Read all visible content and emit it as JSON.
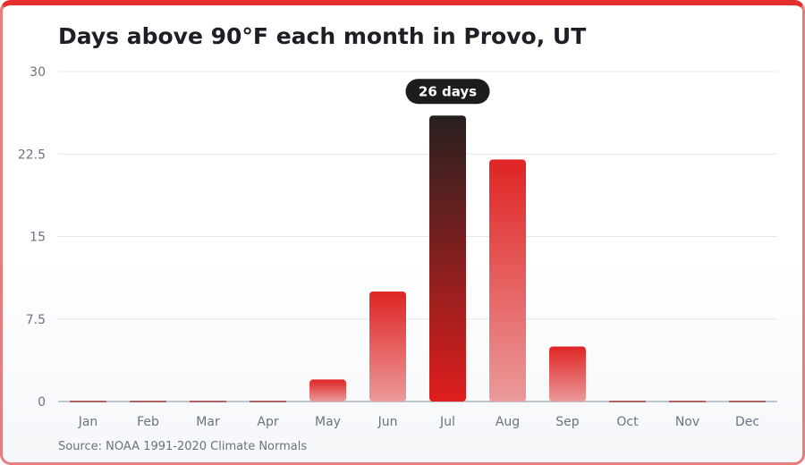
{
  "chart_data": {
    "type": "bar",
    "title": "Days above 90°F each month in Provo, UT",
    "xlabel": "",
    "ylabel": "",
    "categories": [
      "Jan",
      "Feb",
      "Mar",
      "Apr",
      "May",
      "Jun",
      "Jul",
      "Aug",
      "Sep",
      "Oct",
      "Nov",
      "Dec"
    ],
    "values": [
      0,
      0,
      0,
      0,
      2,
      10,
      26,
      22,
      5,
      0,
      0,
      0
    ],
    "ylim": [
      0,
      30
    ],
    "yticks": [
      0,
      7.5,
      15,
      22.5,
      30
    ],
    "ytick_labels": [
      "0",
      "7.5",
      "15",
      "22.5",
      "30"
    ],
    "grid": true,
    "highlight": {
      "category": "Jul",
      "label": "26 days"
    },
    "colors": {
      "bar_top": "#e02424",
      "bar_bottom": "#eb9a9a",
      "highlight_top": "#26201f",
      "highlight_bottom": "#e01e1e",
      "grid": "#e5e7eb",
      "axis": "#9ca3af",
      "tooltip_bg": "#1c1c1c"
    }
  },
  "source": "Source: NOAA 1991-2020 Climate Normals"
}
